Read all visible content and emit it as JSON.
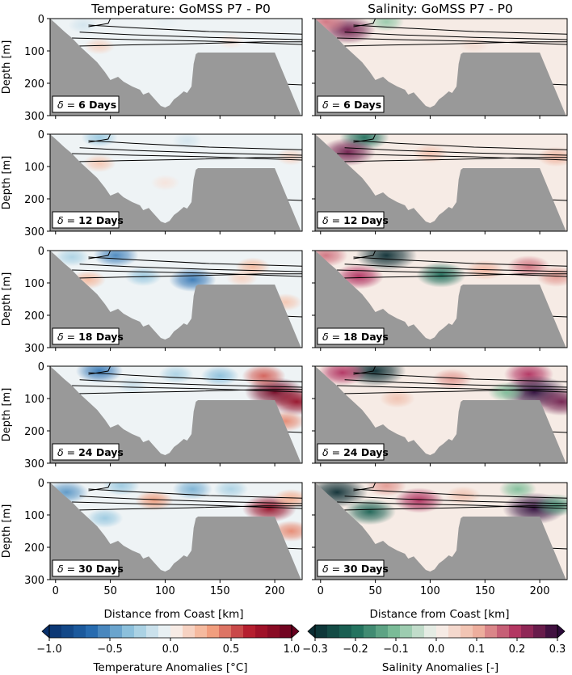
{
  "chart_data": {
    "type": "heatmap",
    "x_range": [
      -5,
      225
    ],
    "y_range": [
      300,
      0
    ],
    "xlabel": "Distance from Coast [km]",
    "ylabel": "Depth [m]",
    "x_ticks": [
      0,
      50,
      100,
      150,
      200
    ],
    "y_ticks": [
      0,
      100,
      200,
      300
    ],
    "delta_labels": [
      "6",
      "12",
      "18",
      "24",
      "30"
    ],
    "delta_suffix": "Days",
    "bathymetry": {
      "distance_km": [
        -5,
        0,
        8,
        15,
        22,
        30,
        38,
        45,
        50,
        57,
        62,
        70,
        77,
        80,
        85,
        88,
        92,
        96,
        100,
        104,
        108,
        112,
        117,
        120,
        124,
        126,
        128,
        130,
        200,
        224
      ],
      "depth_m": [
        0,
        15,
        40,
        60,
        85,
        110,
        135,
        165,
        190,
        180,
        195,
        210,
        220,
        235,
        228,
        240,
        255,
        270,
        275,
        268,
        250,
        240,
        225,
        230,
        210,
        140,
        110,
        105,
        105,
        300
      ]
    },
    "panels": [
      {
        "title": "Temperature: GoMSS P7 - P0",
        "variable": "temperature",
        "colorbar": {
          "label": "Temperature Anomalies [°C]",
          "range": [
            -1.0,
            1.0
          ],
          "ticks": [
            "−1.0",
            "−0.5",
            "0.0",
            "0.5",
            "1.0"
          ],
          "colors": [
            "#08306b",
            "#2166ac",
            "#92c5de",
            "#f7f7f7",
            "#f4a582",
            "#b2182b",
            "#67001f"
          ]
        },
        "rows": [
          {
            "delta_days": 6,
            "anomalies": [
              {
                "x": 25,
                "z": 20,
                "v": -0.12
              },
              {
                "x": 100,
                "z": 10,
                "v": -0.05
              },
              {
                "x": 40,
                "z": 85,
                "v": 0.15
              },
              {
                "x": 160,
                "z": 70,
                "v": 0.08
              }
            ]
          },
          {
            "delta_days": 12,
            "anomalies": [
              {
                "x": 40,
                "z": 10,
                "v": -0.3
              },
              {
                "x": 120,
                "z": 20,
                "v": -0.12
              },
              {
                "x": 40,
                "z": 90,
                "v": 0.2
              },
              {
                "x": 215,
                "z": 70,
                "v": 0.15
              },
              {
                "x": 100,
                "z": 150,
                "v": 0.08
              }
            ]
          },
          {
            "delta_days": 18,
            "anomalies": [
              {
                "x": 55,
                "z": 15,
                "v": -0.55
              },
              {
                "x": 15,
                "z": 20,
                "v": -0.25
              },
              {
                "x": 125,
                "z": 90,
                "v": -0.6
              },
              {
                "x": 80,
                "z": 80,
                "v": -0.3
              },
              {
                "x": 30,
                "z": 90,
                "v": 0.25
              },
              {
                "x": 180,
                "z": 50,
                "v": 0.25
              },
              {
                "x": 210,
                "z": 160,
                "v": 0.2
              },
              {
                "x": 170,
                "z": 85,
                "v": 0.15
              }
            ]
          },
          {
            "delta_days": 24,
            "anomalies": [
              {
                "x": 40,
                "z": 15,
                "v": -0.6
              },
              {
                "x": 110,
                "z": 25,
                "v": -0.25
              },
              {
                "x": 150,
                "z": 30,
                "v": -0.35
              },
              {
                "x": 200,
                "z": 80,
                "v": 0.95
              },
              {
                "x": 220,
                "z": 110,
                "v": 0.8
              },
              {
                "x": 190,
                "z": 30,
                "v": 0.5
              },
              {
                "x": 210,
                "z": 170,
                "v": 0.4
              },
              {
                "x": 70,
                "z": 60,
                "v": -0.15
              }
            ]
          },
          {
            "delta_days": 30,
            "anomalies": [
              {
                "x": 10,
                "z": 30,
                "v": -0.5
              },
              {
                "x": 60,
                "z": 10,
                "v": -0.3
              },
              {
                "x": 125,
                "z": 20,
                "v": -0.4
              },
              {
                "x": 160,
                "z": 20,
                "v": -0.25
              },
              {
                "x": 45,
                "z": 110,
                "v": -0.3
              },
              {
                "x": 195,
                "z": 80,
                "v": 0.8
              },
              {
                "x": 90,
                "z": 55,
                "v": 0.35
              },
              {
                "x": 215,
                "z": 50,
                "v": 0.3
              },
              {
                "x": 215,
                "z": 150,
                "v": 0.4
              }
            ]
          }
        ]
      },
      {
        "title": "Salinity: GoMSS P7 - P0",
        "variable": "salinity",
        "colorbar": {
          "label": "Salinity Anomalies [-]",
          "range": [
            -0.3,
            0.3
          ],
          "ticks": [
            "−0.3",
            "−0.2",
            "−0.1",
            "0.0",
            "0.1",
            "0.2",
            "0.3"
          ],
          "colors": [
            "#0b2d33",
            "#1f6f5c",
            "#7fbf9a",
            "#f7f4f1",
            "#f0b5a0",
            "#b0305f",
            "#2d0b3a"
          ]
        },
        "rows": [
          {
            "delta_days": 6,
            "anomalies": [
              {
                "x": 25,
                "z": 35,
                "v": 0.25
              },
              {
                "x": 5,
                "z": 10,
                "v": 0.15
              },
              {
                "x": 60,
                "z": 10,
                "v": -0.08
              },
              {
                "x": 140,
                "z": 80,
                "v": 0.04
              }
            ]
          },
          {
            "delta_days": 12,
            "anomalies": [
              {
                "x": 40,
                "z": 10,
                "v": -0.2
              },
              {
                "x": 25,
                "z": 55,
                "v": 0.25
              },
              {
                "x": 100,
                "z": 60,
                "v": 0.08
              },
              {
                "x": 215,
                "z": 70,
                "v": 0.1
              }
            ]
          },
          {
            "delta_days": 18,
            "anomalies": [
              {
                "x": 60,
                "z": 15,
                "v": -0.3
              },
              {
                "x": 5,
                "z": 15,
                "v": 0.15
              },
              {
                "x": 35,
                "z": 80,
                "v": 0.2
              },
              {
                "x": 110,
                "z": 75,
                "v": -0.2
              },
              {
                "x": 190,
                "z": 50,
                "v": 0.15
              },
              {
                "x": 215,
                "z": 80,
                "v": 0.12
              },
              {
                "x": 150,
                "z": 60,
                "v": 0.1
              }
            ]
          },
          {
            "delta_days": 24,
            "anomalies": [
              {
                "x": 50,
                "z": 15,
                "v": -0.3
              },
              {
                "x": 20,
                "z": 20,
                "v": 0.2
              },
              {
                "x": 120,
                "z": 40,
                "v": 0.12
              },
              {
                "x": 190,
                "z": 25,
                "v": 0.2
              },
              {
                "x": 195,
                "z": 80,
                "v": 0.35
              },
              {
                "x": 220,
                "z": 110,
                "v": 0.25
              },
              {
                "x": 170,
                "z": 80,
                "v": -0.1
              },
              {
                "x": 70,
                "z": 100,
                "v": 0.08
              }
            ]
          },
          {
            "delta_days": 30,
            "anomalies": [
              {
                "x": 15,
                "z": 30,
                "v": -0.3
              },
              {
                "x": 45,
                "z": 90,
                "v": -0.22
              },
              {
                "x": 90,
                "z": 55,
                "v": 0.2
              },
              {
                "x": 180,
                "z": 20,
                "v": -0.1
              },
              {
                "x": 195,
                "z": 80,
                "v": 0.32
              },
              {
                "x": 215,
                "z": 70,
                "v": -0.15
              },
              {
                "x": 60,
                "z": 10,
                "v": 0.12
              },
              {
                "x": 130,
                "z": 40,
                "v": 0.08
              }
            ]
          }
        ]
      }
    ],
    "isopycnals": [
      [
        {
          "x": 30,
          "z": 20
        },
        {
          "x": 70,
          "z": 28
        },
        {
          "x": 140,
          "z": 40
        },
        {
          "x": 225,
          "z": 48
        }
      ],
      [
        {
          "x": 22,
          "z": 42
        },
        {
          "x": 70,
          "z": 50
        },
        {
          "x": 140,
          "z": 58
        },
        {
          "x": 225,
          "z": 65
        }
      ],
      [
        {
          "x": 15,
          "z": 60
        },
        {
          "x": 70,
          "z": 65
        },
        {
          "x": 140,
          "z": 70
        },
        {
          "x": 225,
          "z": 80
        }
      ],
      [
        {
          "x": 20,
          "z": 85
        },
        {
          "x": 60,
          "z": 82
        },
        {
          "x": 120,
          "z": 78
        },
        {
          "x": 190,
          "z": 72
        },
        {
          "x": 225,
          "z": 72
        }
      ],
      [
        {
          "x": 190,
          "z": 200
        },
        {
          "x": 225,
          "z": 205
        }
      ]
    ]
  }
}
